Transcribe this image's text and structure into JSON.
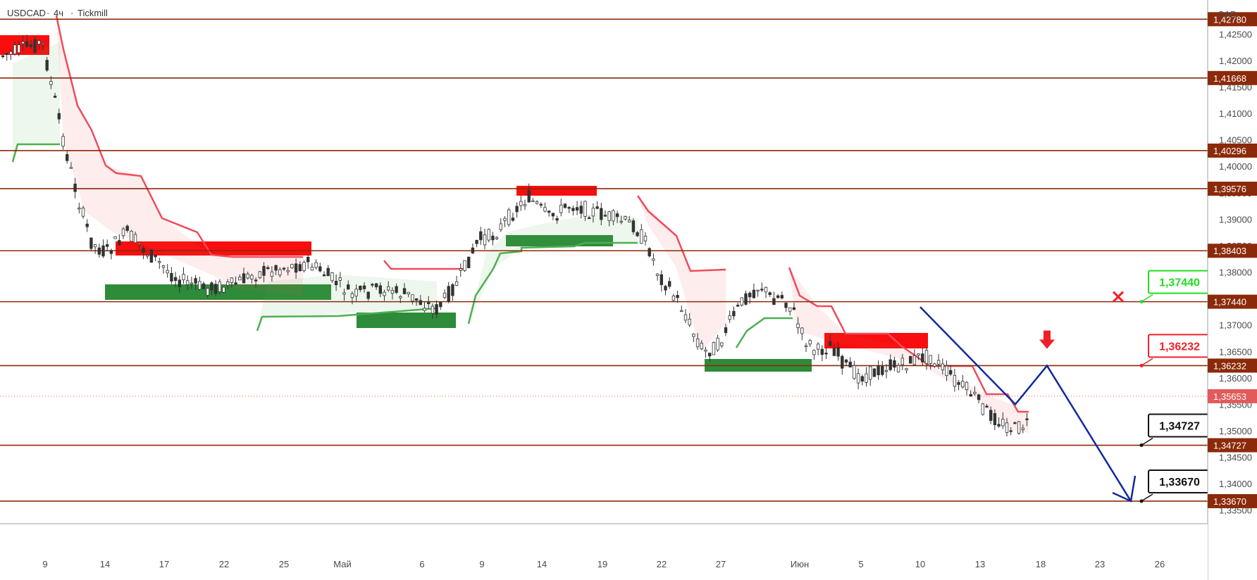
{
  "header": {
    "symbol": "USDCAD",
    "timeframe": "4ч",
    "broker": "Tickmill",
    "separator": "·"
  },
  "currency": "CAD",
  "colors": {
    "level": "#8b2a0a",
    "level_tag": "#8b2a0a",
    "bull": "#26a69a",
    "bear": "#ef5350",
    "supertrend_up": "#4caf50",
    "supertrend_down": "#ef4b5c",
    "zone_red": "#f80e0e",
    "zone_green": "#2e8b3a",
    "path": "#102a9b",
    "callout_green": "#22dd22",
    "callout_red": "#f0202a",
    "callout_black": "#111111",
    "last_price": "#e25b5b"
  },
  "chart_data": {
    "type": "candlestick",
    "y_range": [
      1.3343,
      1.4301
    ],
    "y_ticks": [
      "1,42500",
      "1,42000",
      "1,41500",
      "1,41000",
      "1,40500",
      "1,40000",
      "1,39500",
      "1,39000",
      "1,38500",
      "1,38000",
      "1,37500",
      "1,37000",
      "1,36500",
      "1,36000",
      "1,35500",
      "1,35000",
      "1,34500",
      "1,34000",
      "1,33500"
    ],
    "x_ticks": [
      "9",
      "14",
      "17",
      "22",
      "25",
      "Май",
      "6",
      "9",
      "14",
      "19",
      "22",
      "27",
      "Июн",
      "5",
      "10",
      "13",
      "18",
      "23",
      "26"
    ],
    "levels": [
      {
        "label": "1,42780",
        "value": 1.4278
      },
      {
        "label": "1,41668",
        "value": 1.41668
      },
      {
        "label": "1,40296",
        "value": 1.40296
      },
      {
        "label": "1,39576",
        "value": 1.39576
      },
      {
        "label": "1,38403",
        "value": 1.38403
      },
      {
        "label": "1,37440",
        "value": 1.3744
      },
      {
        "label": "1,36232",
        "value": 1.36232
      },
      {
        "label": "1,34727",
        "value": 1.34727
      },
      {
        "label": "1,33670",
        "value": 1.3367
      }
    ],
    "last_price": {
      "label": "1,35653",
      "value": 1.35653
    },
    "forecast_path": [
      {
        "x": "10 Июн",
        "y": 1.3734
      },
      {
        "x": "16 Июн",
        "y": 1.355
      },
      {
        "x": "18 Июн",
        "y": 1.3623
      },
      {
        "x": "25 Июн",
        "y": 1.3367
      }
    ],
    "callouts": [
      {
        "label": "1,37440",
        "style": "green"
      },
      {
        "label": "1,36232",
        "style": "red"
      },
      {
        "label": "1,34727",
        "style": "black"
      },
      {
        "label": "1,33670",
        "style": "black"
      }
    ]
  }
}
